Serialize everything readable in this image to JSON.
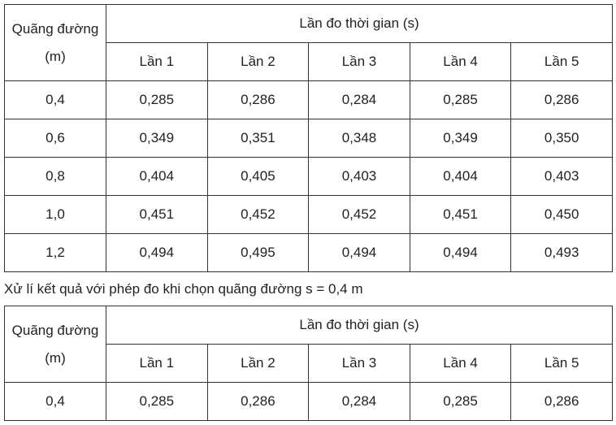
{
  "table1": {
    "header": {
      "distance": "Quãng đường (m)",
      "group": "Lần đo thời gian (s)",
      "trials": [
        "Lần 1",
        "Lần 2",
        "Lần 3",
        "Lần 4",
        "Lần 5"
      ]
    },
    "rows": [
      [
        "0,4",
        "0,285",
        "0,286",
        "0,284",
        "0,285",
        "0,286"
      ],
      [
        "0,6",
        "0,349",
        "0,351",
        "0,348",
        "0,349",
        "0,350"
      ],
      [
        "0,8",
        "0,404",
        "0,405",
        "0,403",
        "0,404",
        "0,403"
      ],
      [
        "1,0",
        "0,451",
        "0,452",
        "0,452",
        "0,451",
        "0,450"
      ],
      [
        "1,2",
        "0,494",
        "0,495",
        "0,494",
        "0,494",
        "0,493"
      ]
    ]
  },
  "caption": "Xử lí kết quả với phép đo khi chọn quãng đường s = 0,4 m",
  "table2": {
    "header": {
      "distance": "Quãng đường (m)",
      "group": "Lần đo thời gian (s)",
      "trials": [
        "Lần 1",
        "Lần 2",
        "Lần 3",
        "Lần 4",
        "Lần 5"
      ]
    },
    "rows": [
      [
        "0,4",
        "0,285",
        "0,286",
        "0,284",
        "0,285",
        "0,286"
      ]
    ]
  }
}
